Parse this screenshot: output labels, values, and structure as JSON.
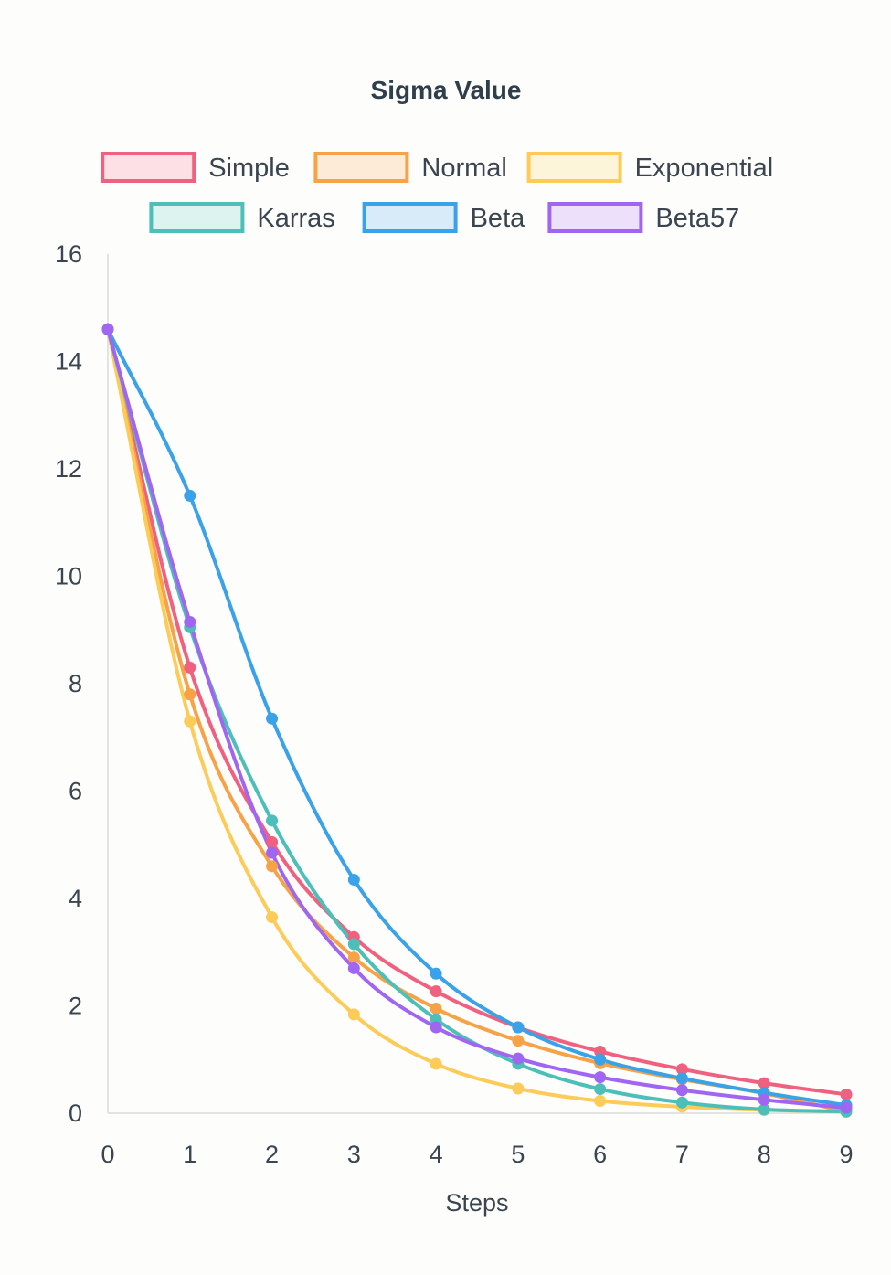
{
  "chart_data": {
    "type": "line",
    "title": "Sigma Value",
    "xlabel": "Steps",
    "ylabel": "",
    "x": [
      0,
      1,
      2,
      3,
      4,
      5,
      6,
      7,
      8,
      9
    ],
    "x_ticks": [
      "0",
      "1",
      "2",
      "3",
      "4",
      "5",
      "6",
      "7",
      "8",
      "9"
    ],
    "y_ticks": [
      "0",
      "2",
      "4",
      "6",
      "8",
      "10",
      "12",
      "14",
      "16"
    ],
    "xlim": [
      0,
      9
    ],
    "ylim": [
      0,
      16
    ],
    "grid": false,
    "legend_position": "top",
    "series": [
      {
        "name": "Simple",
        "color": "#f0607f",
        "fill": "#fde0e6",
        "values": [
          14.6,
          8.3,
          5.05,
          3.28,
          2.27,
          1.6,
          1.15,
          0.82,
          0.56,
          0.35
        ]
      },
      {
        "name": "Normal",
        "color": "#f7a246",
        "fill": "#fdebd8",
        "values": [
          14.6,
          7.8,
          4.6,
          2.9,
          1.95,
          1.35,
          0.93,
          0.63,
          0.37,
          0.03
        ]
      },
      {
        "name": "Exponential",
        "color": "#fccb58",
        "fill": "#fdf5da",
        "values": [
          14.6,
          7.3,
          3.65,
          1.84,
          0.92,
          0.46,
          0.23,
          0.12,
          0.06,
          0.03
        ]
      },
      {
        "name": "Karras",
        "color": "#4cbfb9",
        "fill": "#ddf3ef",
        "values": [
          14.6,
          9.05,
          5.45,
          3.15,
          1.75,
          0.92,
          0.45,
          0.2,
          0.07,
          0.03
        ]
      },
      {
        "name": "Beta",
        "color": "#3aa2e8",
        "fill": "#d8ebf8",
        "values": [
          14.6,
          11.5,
          7.35,
          4.35,
          2.6,
          1.6,
          1.0,
          0.65,
          0.38,
          0.15
        ]
      },
      {
        "name": "Beta57",
        "color": "#a066f2",
        "fill": "#ece0fb",
        "values": [
          14.6,
          9.15,
          4.85,
          2.7,
          1.6,
          1.02,
          0.67,
          0.43,
          0.25,
          0.1
        ]
      }
    ]
  }
}
